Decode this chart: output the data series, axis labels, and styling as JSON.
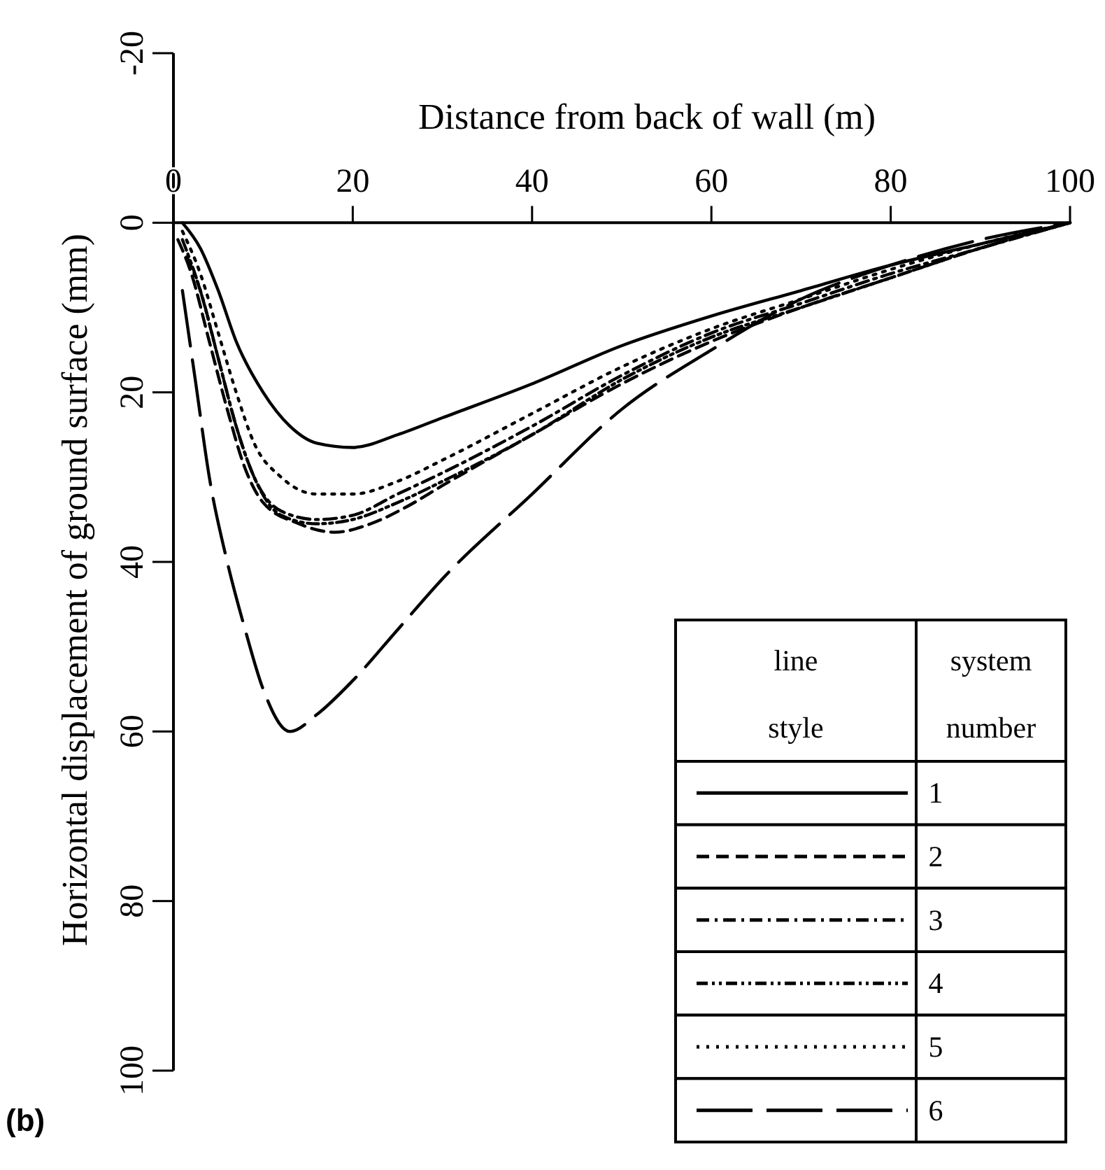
{
  "chart_data": {
    "type": "line",
    "xlabel": "Distance from back of wall (m)",
    "ylabel": "Horizontal displacement of ground surface (mm)",
    "legend_title": "line style",
    "annotations": [
      "system number",
      "(b)"
    ],
    "xlim": [
      0,
      100
    ],
    "xticks": [
      0,
      20,
      40,
      60,
      80,
      100
    ],
    "ylim": [
      100,
      -20
    ],
    "yticks": [
      -20,
      0,
      20,
      40,
      60,
      80,
      100
    ],
    "grid": false,
    "legend": "bottom right",
    "marker": "none",
    "series": [
      {
        "name": "1",
        "color": "#000000",
        "line_style": "solid",
        "x": [
          1,
          3,
          5,
          7,
          10,
          13,
          16,
          20,
          25,
          30,
          40,
          50,
          60,
          70,
          80,
          90,
          100
        ],
        "values": [
          0,
          3,
          8,
          14,
          20,
          24,
          26,
          26.5,
          25,
          23,
          19,
          14.5,
          11,
          8,
          5,
          2.5,
          0
        ]
      },
      {
        "name": "2",
        "color": "#000000",
        "line_style": "dashed",
        "x": [
          0.5,
          2,
          4,
          6,
          8,
          10,
          14,
          18,
          22,
          26,
          30,
          40,
          50,
          60,
          70,
          80,
          90,
          100
        ],
        "values": [
          2,
          6,
          14,
          22,
          29,
          33,
          35.5,
          36.5,
          35.5,
          33.5,
          31,
          25,
          19,
          14,
          10,
          6.5,
          3,
          0
        ]
      },
      {
        "name": "3",
        "color": "#000000",
        "line_style": "dashdot",
        "x": [
          1.5,
          3,
          5,
          7,
          9,
          12,
          16,
          20,
          25,
          30,
          40,
          50,
          60,
          70,
          80,
          90,
          100
        ],
        "values": [
          4,
          8,
          16,
          24,
          30,
          34,
          35,
          34.5,
          32,
          29.5,
          24,
          18,
          13,
          9.5,
          6,
          3,
          0
        ]
      },
      {
        "name": "4",
        "color": "#000000",
        "line_style": "dashdotdot",
        "x": [
          1,
          3,
          5,
          7,
          9,
          12,
          16,
          20,
          25,
          30,
          40,
          50,
          60,
          70,
          80,
          90,
          100
        ],
        "values": [
          2,
          8,
          16,
          24,
          30,
          34.5,
          35.5,
          35,
          33,
          30.5,
          25,
          18.5,
          13.5,
          10,
          6.5,
          3,
          0
        ]
      },
      {
        "name": "5",
        "color": "#000000",
        "line_style": "dotted",
        "x": [
          1,
          3,
          5,
          7,
          9,
          12,
          16,
          20,
          25,
          30,
          40,
          50,
          60,
          70,
          80,
          90,
          100
        ],
        "values": [
          1,
          6,
          13,
          20,
          26,
          30,
          32,
          32,
          30.5,
          28,
          22.5,
          17,
          12.5,
          9,
          5.5,
          2.5,
          0
        ]
      },
      {
        "name": "6",
        "color": "#000000",
        "line_style": "longdash",
        "x": [
          1,
          2.5,
          4,
          6,
          8,
          10,
          13,
          16,
          20,
          25,
          30,
          40,
          50,
          60,
          70,
          80,
          90,
          100
        ],
        "values": [
          8,
          19,
          30,
          40,
          48,
          55,
          60,
          58,
          54,
          48,
          42,
          32,
          22,
          15,
          9,
          5,
          2,
          0
        ]
      }
    ]
  }
}
